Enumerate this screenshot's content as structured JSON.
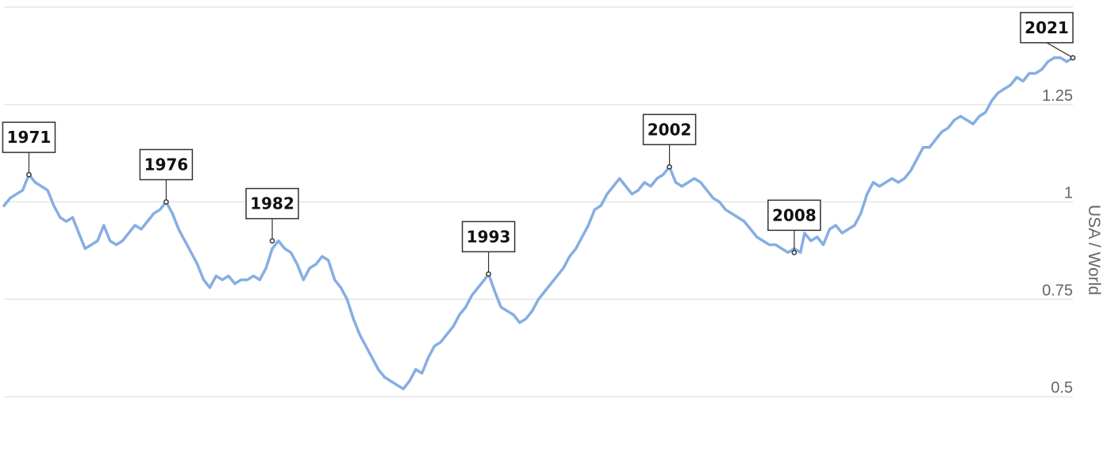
{
  "chart_data": {
    "type": "line",
    "title": "",
    "xlabel": "",
    "ylabel": "USA / World",
    "ylim": [
      0.5,
      1.5
    ],
    "xlim": [
      1970.0,
      2021.4
    ],
    "grid": true,
    "y_ticks": [
      {
        "value": 0.5,
        "label": "0.5"
      },
      {
        "value": 0.75,
        "label": "0.75"
      },
      {
        "value": 1.0,
        "label": "1"
      },
      {
        "value": 1.25,
        "label": "1.25"
      },
      {
        "value": 1.5,
        "label": ""
      }
    ],
    "series": [
      {
        "color": "#86aee3",
        "points": [
          [
            1970.0,
            0.99
          ],
          [
            1970.3,
            1.01
          ],
          [
            1970.6,
            1.02
          ],
          [
            1970.9,
            1.03
          ],
          [
            1971.2,
            1.07
          ],
          [
            1971.5,
            1.05
          ],
          [
            1971.8,
            1.04
          ],
          [
            1972.1,
            1.03
          ],
          [
            1972.4,
            0.99
          ],
          [
            1972.7,
            0.96
          ],
          [
            1973.0,
            0.95
          ],
          [
            1973.3,
            0.96
          ],
          [
            1973.6,
            0.92
          ],
          [
            1973.9,
            0.88
          ],
          [
            1974.2,
            0.89
          ],
          [
            1974.5,
            0.9
          ],
          [
            1974.8,
            0.94
          ],
          [
            1975.1,
            0.9
          ],
          [
            1975.4,
            0.89
          ],
          [
            1975.7,
            0.9
          ],
          [
            1976.0,
            0.92
          ],
          [
            1976.3,
            0.94
          ],
          [
            1976.6,
            0.93
          ],
          [
            1976.9,
            0.95
          ],
          [
            1977.2,
            0.97
          ],
          [
            1977.5,
            0.98
          ],
          [
            1977.8,
            1.0
          ],
          [
            1978.1,
            0.97
          ],
          [
            1978.4,
            0.93
          ],
          [
            1978.7,
            0.9
          ],
          [
            1979.0,
            0.87
          ],
          [
            1979.3,
            0.84
          ],
          [
            1979.6,
            0.8
          ],
          [
            1979.9,
            0.78
          ],
          [
            1980.2,
            0.81
          ],
          [
            1980.5,
            0.8
          ],
          [
            1980.8,
            0.81
          ],
          [
            1981.1,
            0.79
          ],
          [
            1981.4,
            0.8
          ],
          [
            1981.7,
            0.8
          ],
          [
            1982.0,
            0.81
          ],
          [
            1982.3,
            0.8
          ],
          [
            1982.6,
            0.83
          ],
          [
            1982.9,
            0.88
          ],
          [
            1983.2,
            0.9
          ],
          [
            1983.5,
            0.88
          ],
          [
            1983.8,
            0.87
          ],
          [
            1984.1,
            0.84
          ],
          [
            1984.4,
            0.8
          ],
          [
            1984.7,
            0.83
          ],
          [
            1985.0,
            0.84
          ],
          [
            1985.3,
            0.86
          ],
          [
            1985.6,
            0.85
          ],
          [
            1985.9,
            0.8
          ],
          [
            1986.2,
            0.78
          ],
          [
            1986.5,
            0.75
          ],
          [
            1986.8,
            0.7
          ],
          [
            1987.1,
            0.66
          ],
          [
            1987.4,
            0.63
          ],
          [
            1987.7,
            0.6
          ],
          [
            1988.0,
            0.57
          ],
          [
            1988.3,
            0.55
          ],
          [
            1988.6,
            0.54
          ],
          [
            1988.9,
            0.53
          ],
          [
            1989.2,
            0.52
          ],
          [
            1989.5,
            0.54
          ],
          [
            1989.8,
            0.57
          ],
          [
            1990.1,
            0.56
          ],
          [
            1990.4,
            0.6
          ],
          [
            1990.7,
            0.63
          ],
          [
            1991.0,
            0.64
          ],
          [
            1991.3,
            0.66
          ],
          [
            1991.6,
            0.68
          ],
          [
            1991.9,
            0.71
          ],
          [
            1992.2,
            0.73
          ],
          [
            1992.5,
            0.76
          ],
          [
            1992.8,
            0.78
          ],
          [
            1993.1,
            0.8
          ],
          [
            1993.3,
            0.815
          ],
          [
            1993.6,
            0.77
          ],
          [
            1993.9,
            0.73
          ],
          [
            1994.2,
            0.72
          ],
          [
            1994.5,
            0.71
          ],
          [
            1994.8,
            0.69
          ],
          [
            1995.1,
            0.7
          ],
          [
            1995.4,
            0.72
          ],
          [
            1995.7,
            0.75
          ],
          [
            1996.0,
            0.77
          ],
          [
            1996.3,
            0.79
          ],
          [
            1996.6,
            0.81
          ],
          [
            1996.9,
            0.83
          ],
          [
            1997.2,
            0.86
          ],
          [
            1997.5,
            0.88
          ],
          [
            1997.8,
            0.91
          ],
          [
            1998.1,
            0.94
          ],
          [
            1998.4,
            0.98
          ],
          [
            1998.7,
            0.99
          ],
          [
            1999.0,
            1.02
          ],
          [
            1999.3,
            1.04
          ],
          [
            1999.6,
            1.06
          ],
          [
            1999.9,
            1.04
          ],
          [
            2000.2,
            1.02
          ],
          [
            2000.5,
            1.03
          ],
          [
            2000.8,
            1.05
          ],
          [
            2001.1,
            1.04
          ],
          [
            2001.4,
            1.06
          ],
          [
            2001.7,
            1.07
          ],
          [
            2002.0,
            1.09
          ],
          [
            2002.3,
            1.05
          ],
          [
            2002.6,
            1.04
          ],
          [
            2002.9,
            1.05
          ],
          [
            2003.2,
            1.06
          ],
          [
            2003.5,
            1.05
          ],
          [
            2003.8,
            1.03
          ],
          [
            2004.1,
            1.01
          ],
          [
            2004.4,
            1.0
          ],
          [
            2004.7,
            0.98
          ],
          [
            2005.0,
            0.97
          ],
          [
            2005.3,
            0.96
          ],
          [
            2005.6,
            0.95
          ],
          [
            2005.9,
            0.93
          ],
          [
            2006.2,
            0.91
          ],
          [
            2006.5,
            0.9
          ],
          [
            2006.8,
            0.89
          ],
          [
            2007.1,
            0.89
          ],
          [
            2007.4,
            0.88
          ],
          [
            2007.7,
            0.87
          ],
          [
            2008.0,
            0.88
          ],
          [
            2008.3,
            0.87
          ],
          [
            2008.5,
            0.92
          ],
          [
            2008.8,
            0.9
          ],
          [
            2009.1,
            0.91
          ],
          [
            2009.4,
            0.89
          ],
          [
            2009.7,
            0.93
          ],
          [
            2010.0,
            0.94
          ],
          [
            2010.3,
            0.92
          ],
          [
            2010.6,
            0.93
          ],
          [
            2010.9,
            0.94
          ],
          [
            2011.2,
            0.97
          ],
          [
            2011.5,
            1.02
          ],
          [
            2011.8,
            1.05
          ],
          [
            2012.1,
            1.04
          ],
          [
            2012.4,
            1.05
          ],
          [
            2012.7,
            1.06
          ],
          [
            2013.0,
            1.05
          ],
          [
            2013.3,
            1.06
          ],
          [
            2013.6,
            1.08
          ],
          [
            2013.9,
            1.11
          ],
          [
            2014.2,
            1.14
          ],
          [
            2014.5,
            1.14
          ],
          [
            2014.8,
            1.16
          ],
          [
            2015.1,
            1.18
          ],
          [
            2015.4,
            1.19
          ],
          [
            2015.7,
            1.21
          ],
          [
            2016.0,
            1.22
          ],
          [
            2016.3,
            1.21
          ],
          [
            2016.6,
            1.2
          ],
          [
            2016.9,
            1.22
          ],
          [
            2017.2,
            1.23
          ],
          [
            2017.5,
            1.26
          ],
          [
            2017.8,
            1.28
          ],
          [
            2018.1,
            1.29
          ],
          [
            2018.4,
            1.3
          ],
          [
            2018.7,
            1.32
          ],
          [
            2019.0,
            1.31
          ],
          [
            2019.3,
            1.33
          ],
          [
            2019.6,
            1.33
          ],
          [
            2019.9,
            1.34
          ],
          [
            2020.2,
            1.36
          ],
          [
            2020.5,
            1.37
          ],
          [
            2020.8,
            1.37
          ],
          [
            2021.1,
            1.36
          ],
          [
            2021.4,
            1.37
          ]
        ]
      }
    ],
    "annotations": [
      {
        "label": "1971",
        "x": 1971.2,
        "y": 1.07,
        "side": "above"
      },
      {
        "label": "1976",
        "x": 1977.8,
        "y": 1.0,
        "side": "above"
      },
      {
        "label": "1982",
        "x": 1982.9,
        "y": 0.9,
        "side": "above"
      },
      {
        "label": "1993",
        "x": 1993.3,
        "y": 0.815,
        "side": "above"
      },
      {
        "label": "2002",
        "x": 2002.0,
        "y": 1.09,
        "side": "above"
      },
      {
        "label": "2008",
        "x": 2008.0,
        "y": 0.87,
        "side": "above"
      },
      {
        "label": "2021",
        "x": 2021.4,
        "y": 1.37,
        "side": "above-left"
      }
    ]
  }
}
